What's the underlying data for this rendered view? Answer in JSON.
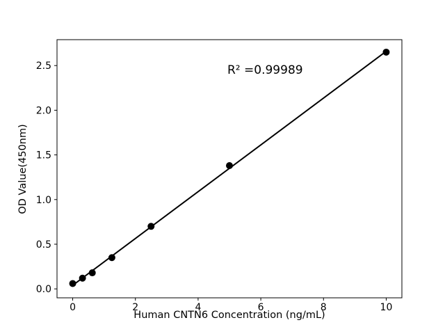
{
  "figure": {
    "background_color": "#ffffff",
    "foreground_color": "#000000"
  },
  "chart_data": {
    "type": "scatter",
    "title": "",
    "xlabel": "Human CNTN6 Concentration (ng/mL)",
    "ylabel": "OD Value(450nm)",
    "annotation": "R² =0.99989",
    "x": [
      0,
      0.3125,
      0.625,
      1.25,
      2.5,
      5,
      10
    ],
    "y": [
      0.06,
      0.12,
      0.18,
      0.35,
      0.7,
      1.38,
      2.65
    ],
    "fit_line": {
      "x": [
        0,
        10
      ],
      "y": [
        0.04,
        2.66
      ]
    },
    "xlim": [
      -0.5,
      10.5
    ],
    "ylim": [
      -0.1,
      2.79
    ],
    "x_ticks": [
      0,
      2,
      4,
      6,
      8,
      10
    ],
    "x_tick_labels": [
      "0",
      "2",
      "4",
      "6",
      "8",
      "10"
    ],
    "y_ticks": [
      0.0,
      0.5,
      1.0,
      1.5,
      2.0,
      2.5
    ],
    "y_tick_labels": [
      "0.0",
      "0.5",
      "1.0",
      "1.5",
      "2.0",
      "2.5"
    ],
    "marker_color": "#000000",
    "line_color": "#000000",
    "grid": "off",
    "legend": "none"
  }
}
